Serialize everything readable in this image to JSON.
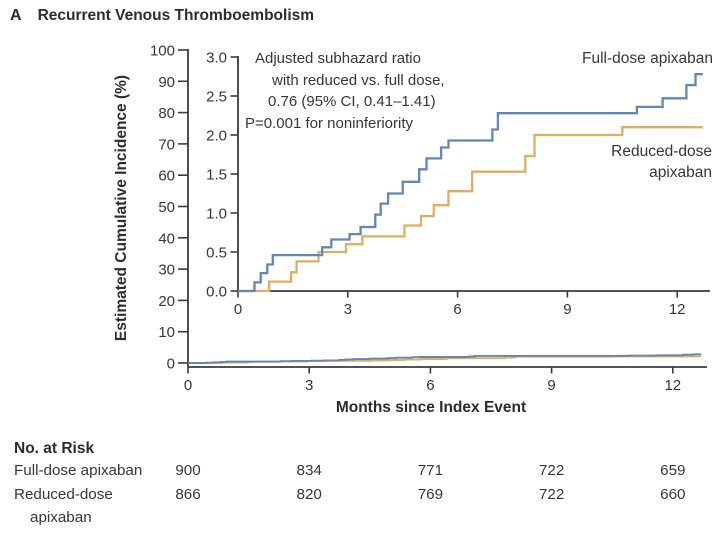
{
  "panel": {
    "label": "A",
    "title": "Recurrent Venous Thromboembolism"
  },
  "colors": {
    "full_dose": "#6286b6",
    "reduced_dose": "#dfae5e",
    "axis": "#3a3a42",
    "text": "#35353d"
  },
  "annotation": {
    "lines": [
      "Adjusted subhazard ratio",
      "with reduced vs. full dose,",
      "0.76 (95% CI, 0.41–1.41)",
      "P=0.001 for noninferiority"
    ]
  },
  "labels": {
    "full_dose_series": "Full-dose apixaban",
    "reduced_dose_series_line1": "Reduced-dose",
    "reduced_dose_series_line2": "apixaban"
  },
  "chart_data": {
    "type": "line",
    "step": true,
    "title": "Recurrent Venous Thromboembolism",
    "xlabel": "Months since Index Event",
    "ylabel": "Estimated Cumulative Incidence (%)",
    "annotation": "Adjusted subhazard ratio with reduced vs. full dose, 0.76 (95% CI, 0.41–1.41); P=0.001 for noninferiority",
    "series": [
      {
        "name": "Full-dose apixaban",
        "color_key": "full_dose",
        "points": [
          [
            0,
            0
          ],
          [
            0.45,
            0.11
          ],
          [
            0.62,
            0.23
          ],
          [
            0.8,
            0.34
          ],
          [
            0.95,
            0.46
          ],
          [
            2.3,
            0.56
          ],
          [
            2.55,
            0.66
          ],
          [
            3.05,
            0.73
          ],
          [
            3.35,
            0.82
          ],
          [
            3.75,
            0.98
          ],
          [
            3.9,
            1.12
          ],
          [
            4.1,
            1.25
          ],
          [
            4.5,
            1.4
          ],
          [
            4.95,
            1.56
          ],
          [
            5.15,
            1.7
          ],
          [
            5.55,
            1.84
          ],
          [
            5.75,
            1.93
          ],
          [
            6.95,
            2.07
          ],
          [
            7.1,
            2.28
          ],
          [
            10.9,
            2.36
          ],
          [
            11.6,
            2.47
          ],
          [
            12.25,
            2.64
          ],
          [
            12.5,
            2.78
          ],
          [
            12.7,
            2.78
          ]
        ]
      },
      {
        "name": "Reduced-dose apixaban",
        "color_key": "reduced_dose",
        "points": [
          [
            0,
            0
          ],
          [
            0.85,
            0.12
          ],
          [
            1.45,
            0.24
          ],
          [
            1.6,
            0.38
          ],
          [
            2.2,
            0.5
          ],
          [
            2.95,
            0.6
          ],
          [
            3.4,
            0.7
          ],
          [
            4.55,
            0.84
          ],
          [
            5.0,
            0.96
          ],
          [
            5.35,
            1.1
          ],
          [
            5.75,
            1.28
          ],
          [
            6.4,
            1.53
          ],
          [
            7.85,
            1.73
          ],
          [
            8.1,
            2.0
          ],
          [
            10.5,
            2.1
          ],
          [
            12.7,
            2.1
          ]
        ]
      }
    ],
    "main_view": {
      "xlim": [
        0,
        12.85
      ],
      "ylim": [
        0,
        100
      ],
      "xticks": [
        0,
        3,
        6,
        9,
        12
      ],
      "yticks": [
        0,
        10,
        20,
        30,
        40,
        50,
        60,
        70,
        80,
        90,
        100
      ]
    },
    "inset_view": {
      "xlim": [
        0,
        12.9
      ],
      "ylim": [
        0,
        3.0
      ],
      "xticks": [
        0,
        3,
        6,
        9,
        12
      ],
      "yticks": [
        0,
        0.5,
        1,
        1.5,
        2,
        2.5,
        3
      ],
      "ytick_labels": [
        "0.0",
        "0.5",
        "1.0",
        "1.5",
        "2.0",
        "2.5",
        "3.0"
      ]
    }
  },
  "risk_table": {
    "title": "No. at Risk",
    "timepoints": [
      0,
      3,
      6,
      9,
      12
    ],
    "rows": [
      {
        "label": "Full-dose apixaban",
        "label_line2": "",
        "values": [
          "900",
          "834",
          "771",
          "722",
          "659"
        ]
      },
      {
        "label": "Reduced-dose",
        "label_line2": "apixaban",
        "values": [
          "866",
          "820",
          "769",
          "722",
          "660"
        ]
      }
    ]
  }
}
